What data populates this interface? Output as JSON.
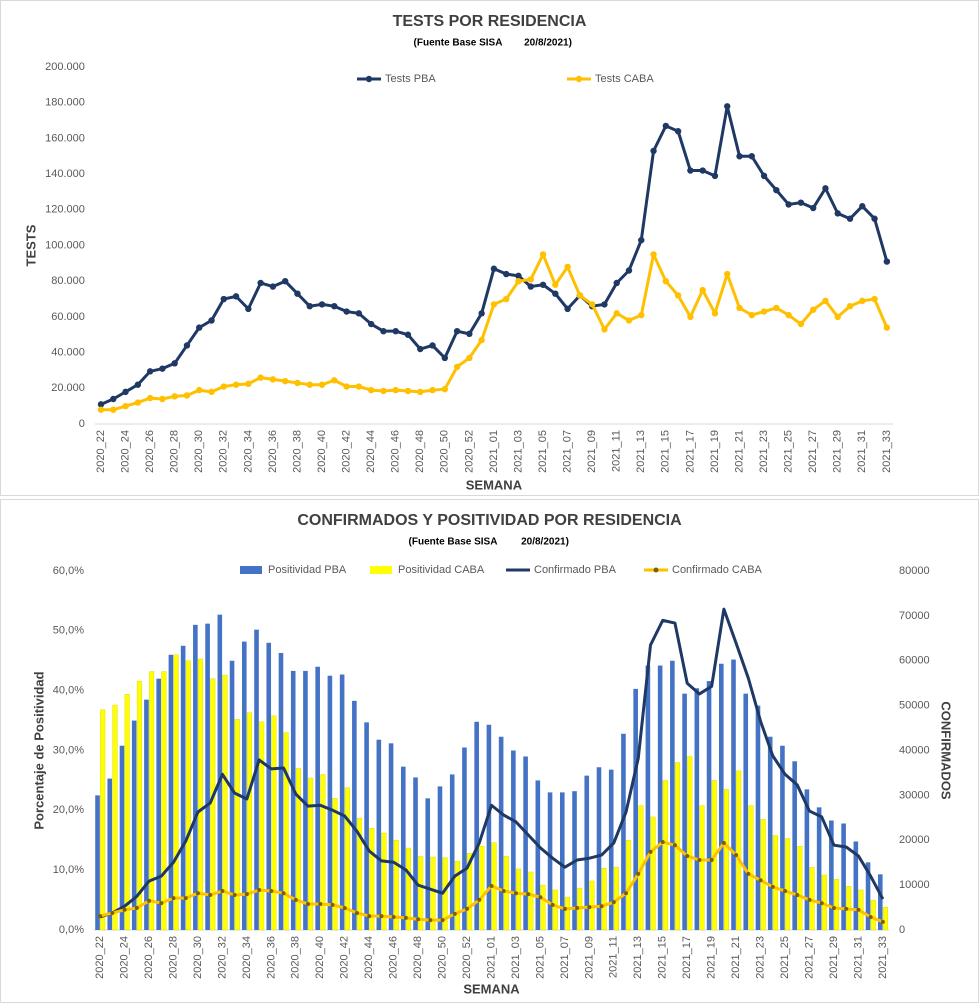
{
  "chart_data": [
    {
      "type": "line",
      "title": "TESTS POR RESIDENCIA",
      "subtitle_source": "(Fuente Base SISA",
      "subtitle_date": "20/8/2021)",
      "y_label": "TESTS",
      "x_label": "SEMANA",
      "legend": "top",
      "categories": [
        "2020_22",
        null,
        "2020_24",
        null,
        "2020_26",
        null,
        "2020_28",
        null,
        "2020_30",
        null,
        "2020_32",
        null,
        "2020_34",
        null,
        "2020_36",
        null,
        "2020_38",
        null,
        "2020_40",
        null,
        "2020_42",
        null,
        "2020_44",
        null,
        "2020_46",
        null,
        "2020_48",
        null,
        "2020_50",
        null,
        "2020_52",
        null,
        "2021_01",
        null,
        "2021_03",
        null,
        "2021_05",
        null,
        "2021_07",
        null,
        "2021_09",
        null,
        "2021_11",
        null,
        "2021_13",
        null,
        "2021_15",
        null,
        "2021_17",
        null,
        "2021_19",
        null,
        "2021_21",
        null,
        "2021_23",
        null,
        "2021_25",
        null,
        "2021_27",
        null,
        "2021_29",
        null,
        "2021_31",
        null,
        "2021_33"
      ],
      "ylim": [
        0,
        200000
      ],
      "yticks": [
        0,
        {
          "value": 20000,
          "label": "20.000"
        },
        {
          "value": 40000,
          "label": "40.000"
        },
        {
          "value": 60000,
          "label": "60.000"
        },
        {
          "value": 80000,
          "label": "80.000"
        },
        {
          "value": 100000,
          "label": "100.000"
        },
        {
          "value": 120000,
          "label": "120.000"
        },
        {
          "value": 140000,
          "label": "140.000"
        },
        {
          "value": 160000,
          "label": "160.000"
        },
        {
          "value": 180000,
          "label": "180.000"
        },
        {
          "value": 200000,
          "label": "200.000"
        }
      ],
      "series": [
        {
          "name": "Tests PBA",
          "color": "#1f3864",
          "marker_color": "#1f3864",
          "values": [
            11000,
            14000,
            18000,
            22000,
            29500,
            31000,
            34000,
            44000,
            54000,
            58000,
            70000,
            71500,
            64500,
            79000,
            77000,
            80000,
            73000,
            66000,
            67000,
            66000,
            63000,
            62000,
            56000,
            52000,
            52000,
            50000,
            42000,
            44000,
            37000,
            52000,
            50500,
            62000,
            87000,
            84000,
            83000,
            77000,
            78000,
            73000,
            64500,
            72000,
            66000,
            67000,
            79000,
            86000,
            103000,
            153000,
            167000,
            164000,
            142000,
            142000,
            139000,
            178000,
            150000,
            150000,
            139000,
            131000,
            123000,
            124000,
            121000,
            132000,
            118000,
            115000,
            122000,
            115000,
            91000
          ]
        },
        {
          "name": "Tests CABA",
          "color": "#ffc000",
          "marker_color": "#ffc000",
          "values": [
            8000,
            8000,
            10000,
            12000,
            14500,
            14000,
            15500,
            16000,
            19000,
            18000,
            21000,
            22000,
            22500,
            26000,
            25000,
            24000,
            23000,
            22000,
            22000,
            24500,
            21000,
            21000,
            19000,
            18500,
            19000,
            18500,
            18000,
            19000,
            19500,
            32000,
            37000,
            47000,
            67000,
            70000,
            80000,
            81000,
            95000,
            78000,
            88000,
            72000,
            67000,
            53000,
            62000,
            58000,
            61000,
            95000,
            80000,
            72000,
            60000,
            75000,
            62000,
            84000,
            65000,
            61000,
            63000,
            65000,
            61000,
            56000,
            64000,
            69000,
            60000,
            66000,
            69000,
            70000,
            54000
          ]
        }
      ]
    },
    {
      "type": "bar",
      "title": "CONFIRMADOS Y POSITIVIDAD POR RESIDENCIA",
      "subtitle_source": "(Fuente Base SISA",
      "subtitle_date": "20/8/2021)",
      "y_label": "Porcentaje de Positividad",
      "y2_label": "CONFIRMADOS",
      "x_label": "SEMANA",
      "legend": "top",
      "categories": [
        "2020_22",
        null,
        "2020_24",
        null,
        "2020_26",
        null,
        "2020_28",
        null,
        "2020_30",
        null,
        "2020_32",
        null,
        "2020_34",
        null,
        "2020_36",
        null,
        "2020_38",
        null,
        "2020_40",
        null,
        "2020_42",
        null,
        "2020_44",
        null,
        "2020_46",
        null,
        "2020_48",
        null,
        "2020_50",
        null,
        "2020_52",
        null,
        "2021_01",
        null,
        "2021_03",
        null,
        "2021_05",
        null,
        "2021_07",
        null,
        "2021_09",
        null,
        "2021_11",
        null,
        "2021_13",
        null,
        "2021_15",
        null,
        "2021_17",
        null,
        "2021_19",
        null,
        "2021_21",
        null,
        "2021_23",
        null,
        "2021_25",
        null,
        "2021_27",
        null,
        "2021_29",
        null,
        "2021_31",
        null,
        "2021_33"
      ],
      "ylim": [
        0,
        60
      ],
      "yticks": [
        {
          "value": 0,
          "label": "0,0%"
        },
        {
          "value": 10,
          "label": "10,0%"
        },
        {
          "value": 20,
          "label": "20,0%"
        },
        {
          "value": 30,
          "label": "30,0%"
        },
        {
          "value": 40,
          "label": "40,0%"
        },
        {
          "value": 50,
          "label": "50,0%"
        },
        {
          "value": 60,
          "label": "60,0%"
        }
      ],
      "y2lim": [
        0,
        80000
      ],
      "y2ticks": [
        0,
        10000,
        20000,
        30000,
        40000,
        50000,
        60000,
        70000,
        80000
      ],
      "series": [
        {
          "name": "Positividad PBA",
          "type": "bar",
          "color": "#4472c4",
          "values": [
            22.5,
            25.3,
            30.8,
            35,
            38.5,
            42,
            46,
            47.5,
            51,
            51.2,
            52.7,
            45,
            48.2,
            50.2,
            48,
            46.3,
            43.3,
            43.3,
            44,
            42.5,
            42.7,
            38.3,
            34.7,
            31.8,
            31.2,
            27.3,
            25.5,
            22,
            24,
            26,
            30.5,
            34.8,
            34.3,
            32.3,
            30,
            29,
            25,
            23,
            23,
            23.2,
            25.8,
            27.2,
            26.8,
            32.8,
            40.3,
            44.2,
            44.2,
            45,
            39.5,
            40.4,
            41.6,
            44.5,
            45.2,
            39.5,
            37.5,
            32.3,
            30.8,
            28.2,
            23.5,
            20.5,
            18.3,
            17.8,
            14.8,
            11.3,
            9.3
          ]
        },
        {
          "name": "Positividad CABA",
          "type": "bar",
          "color": "#ffff00",
          "values": [
            36.8,
            37.6,
            39.4,
            41.6,
            43.2,
            43.2,
            46,
            45,
            45.3,
            42,
            42.6,
            35.2,
            36.3,
            34.8,
            35.8,
            33,
            27,
            25.4,
            26,
            22,
            23.8,
            18.7,
            17,
            16.2,
            15,
            13.7,
            12.3,
            12.2,
            12.1,
            11.5,
            12.8,
            14,
            14.6,
            12.3,
            10.2,
            9.7,
            7.5,
            6.7,
            5.5,
            7,
            8.2,
            10.3,
            10.5,
            15,
            20.8,
            18.9,
            25,
            28,
            29,
            20.8,
            25,
            23.5,
            26.6,
            20.8,
            18.5,
            15.8,
            15.3,
            14,
            10.5,
            9.2,
            8.5,
            7.3,
            6.7,
            5,
            3.8
          ]
        },
        {
          "name": "Confirmado PBA",
          "type": "line",
          "axis": "y2",
          "color": "#1f3864",
          "values": [
            2900,
            3800,
            5300,
            7500,
            10900,
            12000,
            15100,
            19800,
            26300,
            28300,
            34700,
            30500,
            29200,
            37900,
            35900,
            36100,
            30300,
            27600,
            27800,
            26700,
            25400,
            22000,
            17600,
            15400,
            15100,
            13400,
            10000,
            9100,
            8200,
            12000,
            13800,
            19400,
            27800,
            25600,
            24100,
            21200,
            18300,
            16000,
            14000,
            15600,
            16000,
            16700,
            19400,
            26300,
            38300,
            63500,
            69000,
            68400,
            55000,
            52600,
            54300,
            71500,
            63900,
            56100,
            46500,
            38800,
            34700,
            32300,
            26500,
            25200,
            18900,
            18500,
            16500,
            12000,
            6900
          ]
        },
        {
          "name": "Confirmado CABA",
          "type": "line",
          "axis": "y2",
          "color": "#ffc000",
          "marker_color": "#7f6000",
          "values": [
            3100,
            3800,
            4500,
            4900,
            6500,
            6000,
            7100,
            7100,
            8200,
            7800,
            8700,
            7800,
            8000,
            8900,
            8700,
            8200,
            6700,
            5800,
            5800,
            5600,
            4900,
            3800,
            3100,
            3100,
            2900,
            2700,
            2400,
            2200,
            2200,
            3600,
            4700,
            6700,
            9800,
            8700,
            8200,
            8000,
            7300,
            5600,
            4700,
            4900,
            5100,
            5300,
            6200,
            8200,
            12500,
            17400,
            19600,
            18900,
            16500,
            15600,
            15600,
            19400,
            16700,
            12500,
            11100,
            9600,
            8700,
            7800,
            6700,
            6000,
            4900,
            4700,
            4500,
            2900,
            1800
          ]
        }
      ]
    }
  ]
}
